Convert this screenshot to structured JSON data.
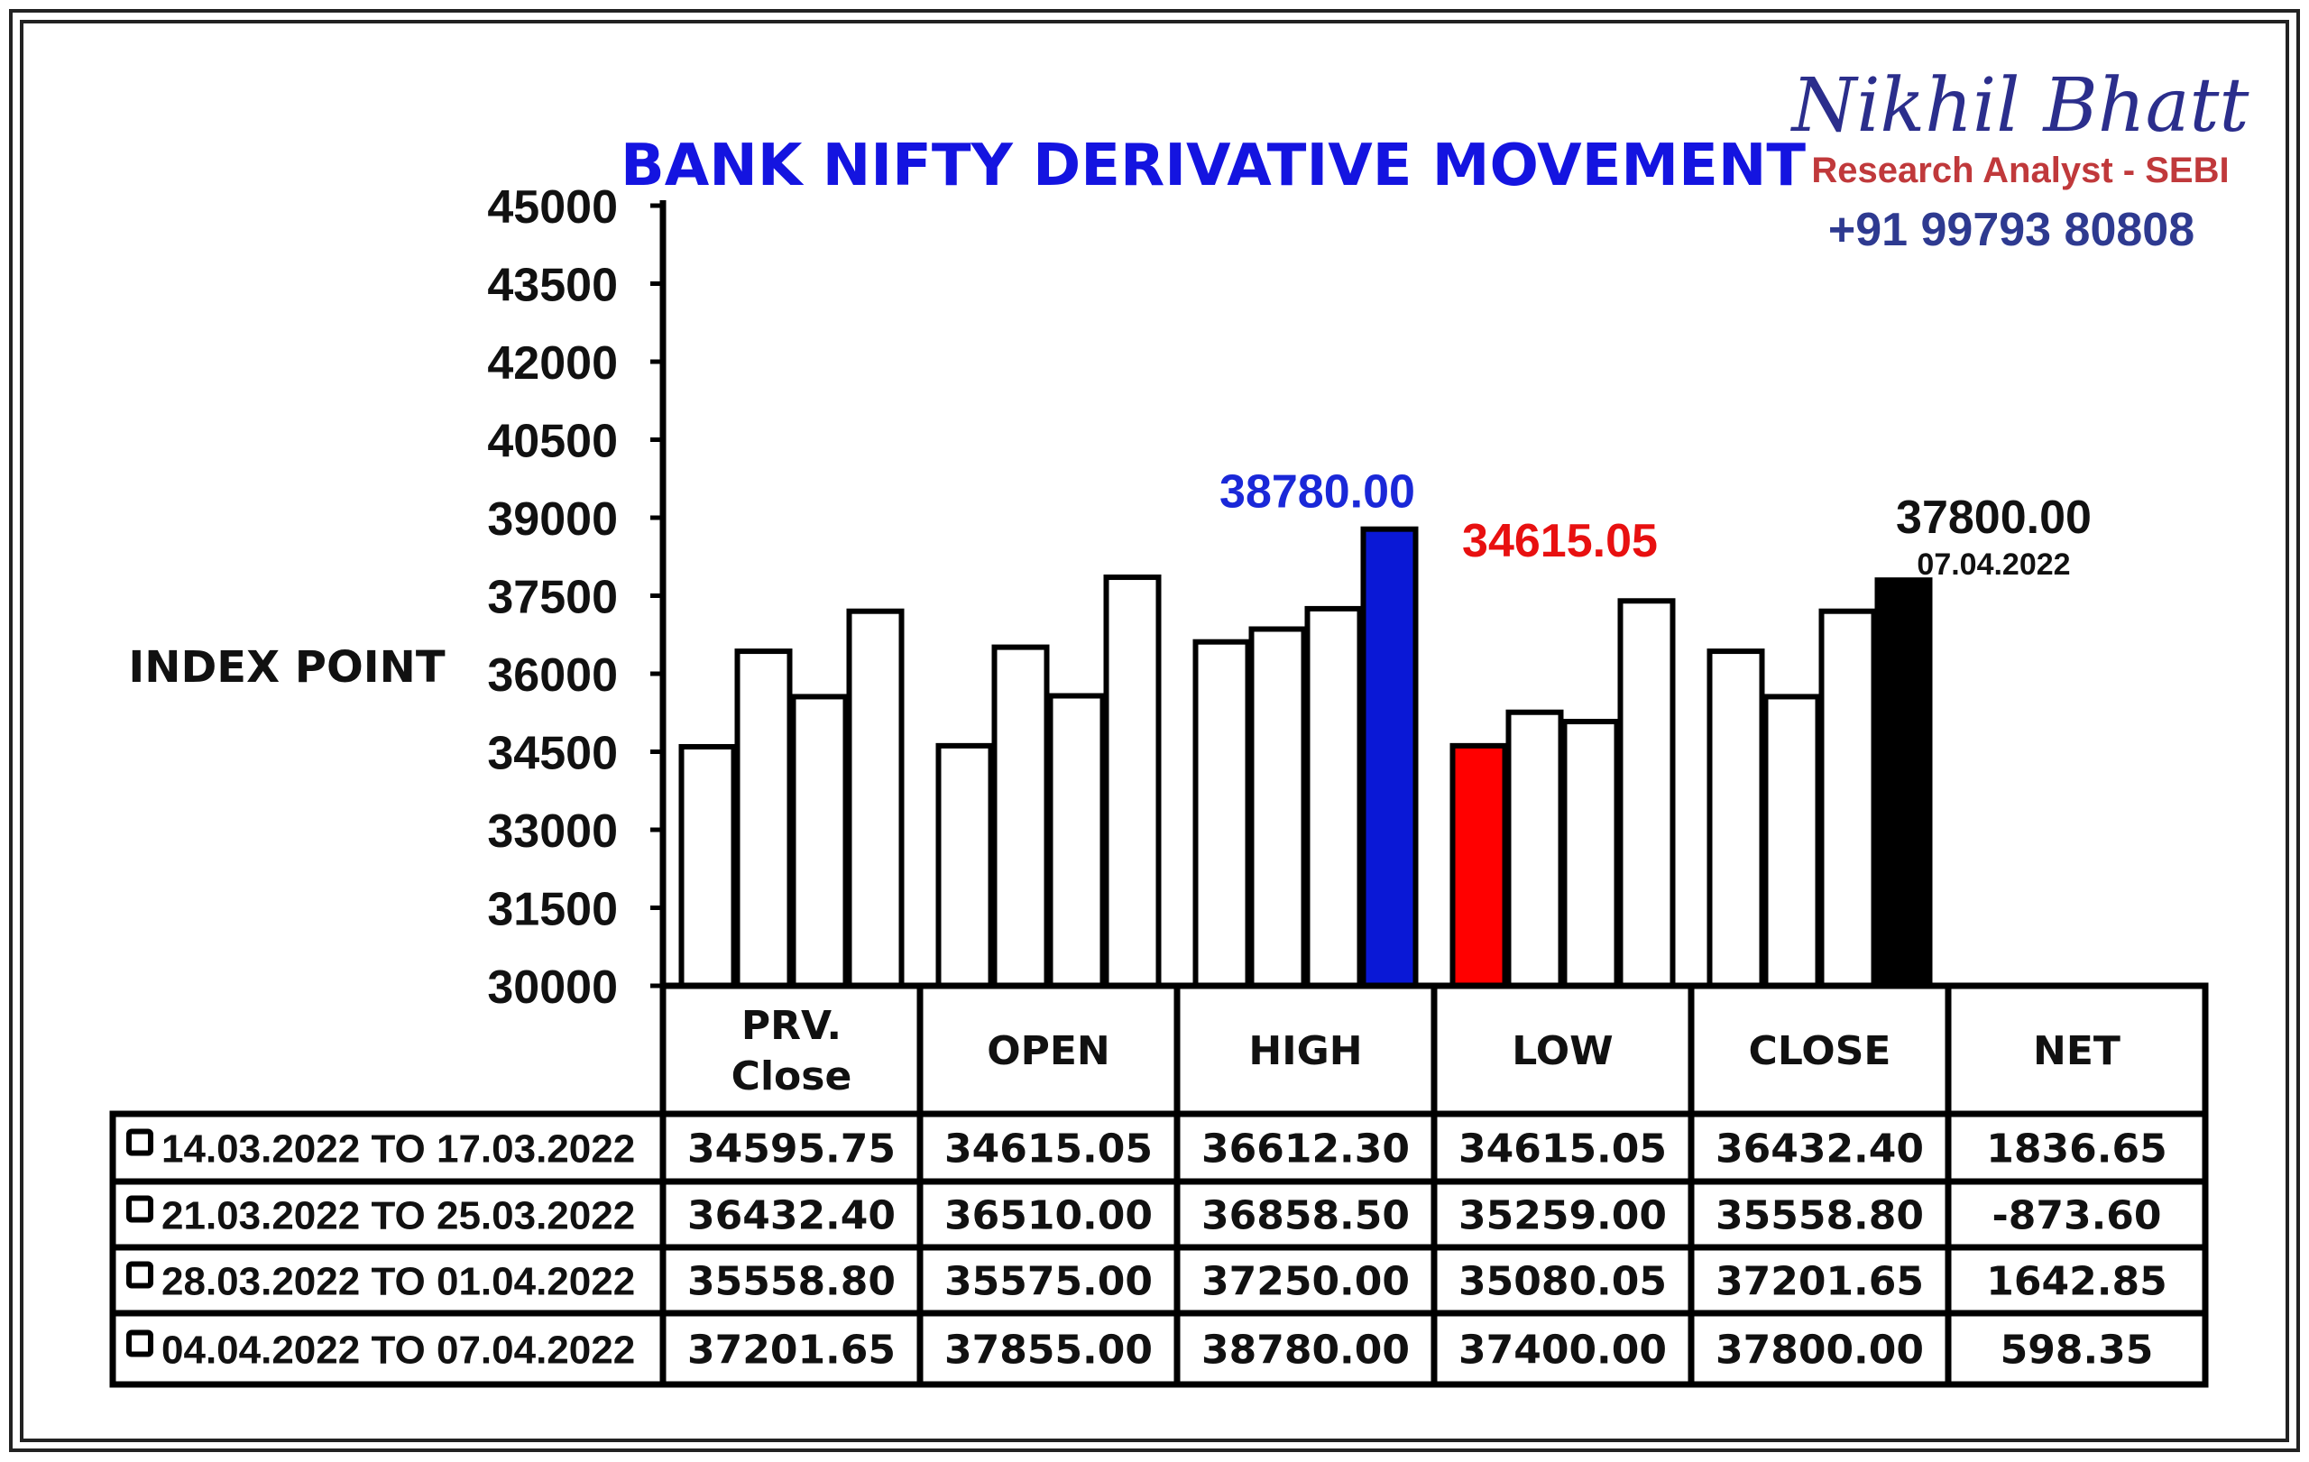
{
  "chart_data": {
    "type": "bar",
    "title": "BANK NIFTY DERIVATIVE MOVEMENT",
    "ylabel": "INDEX POINT",
    "ylim": [
      30000,
      45000
    ],
    "yticks": [
      "45000",
      "43500",
      "42000",
      "40500",
      "39000",
      "37500",
      "36000",
      "34500",
      "33000",
      "31500",
      "30000"
    ],
    "categories": [
      "PRV. Close",
      "OPEN",
      "HIGH",
      "LOW",
      "CLOSE"
    ],
    "series": [
      {
        "name": "14.03.2022 TO 17.03.2022",
        "values": [
          34595.75,
          34615.05,
          36612.3,
          34615.05,
          36432.4
        ]
      },
      {
        "name": "21.03.2022 TO 25.03.2022",
        "values": [
          36432.4,
          36510.0,
          36858.5,
          35259.0,
          35558.8
        ]
      },
      {
        "name": "28.03.2022 TO 01.04.2022",
        "values": [
          35558.8,
          35575.0,
          37250.0,
          35080.05,
          37201.65
        ]
      },
      {
        "name": "04.04.2022 TO 07.04.2022",
        "values": [
          37201.65,
          37855.0,
          38780.0,
          37400.0,
          37800.0
        ]
      }
    ],
    "highlights": [
      {
        "category": 2,
        "series": 3,
        "color": "#0a18d6",
        "label": "38780.00",
        "label_color": "#1a28d8"
      },
      {
        "category": 3,
        "series": 0,
        "color": "#ff0000",
        "label": "34615.05",
        "label_color": "#e81010"
      },
      {
        "category": 4,
        "series": 3,
        "color": "#000000",
        "label": "37800.00",
        "sublabel": "07.04.2022",
        "label_color": "#111111"
      }
    ],
    "colors": {
      "bar_fill": "#ffffff",
      "bar_stroke": "#000000",
      "title": "#1414e0"
    }
  },
  "table": {
    "headers": [
      "PRV.\nClose",
      "OPEN",
      "HIGH",
      "LOW",
      "CLOSE",
      "NET"
    ],
    "rows": [
      {
        "label": "14.03.2022 TO 17.03.2022",
        "cells": [
          "34595.75",
          "34615.05",
          "36612.30",
          "34615.05",
          "36432.40",
          "1836.65"
        ]
      },
      {
        "label": "21.03.2022 TO 25.03.2022",
        "cells": [
          "36432.40",
          "36510.00",
          "36858.50",
          "35259.00",
          "35558.80",
          "-873.60"
        ]
      },
      {
        "label": "28.03.2022 TO 01.04.2022",
        "cells": [
          "35558.80",
          "35575.00",
          "37250.00",
          "35080.05",
          "37201.65",
          "1642.85"
        ]
      },
      {
        "label": "04.04.2022 TO 07.04.2022",
        "cells": [
          "37201.65",
          "37855.00",
          "38780.00",
          "37400.00",
          "37800.00",
          "598.35"
        ]
      }
    ]
  },
  "branding": {
    "name": "Nikhil Bhatt",
    "role": "Research Analyst - SEBI",
    "phone": "+91 99793 80808",
    "name_color": "#2b2e8c",
    "role_color": "#c0393b",
    "phone_color": "#2e3a90"
  }
}
